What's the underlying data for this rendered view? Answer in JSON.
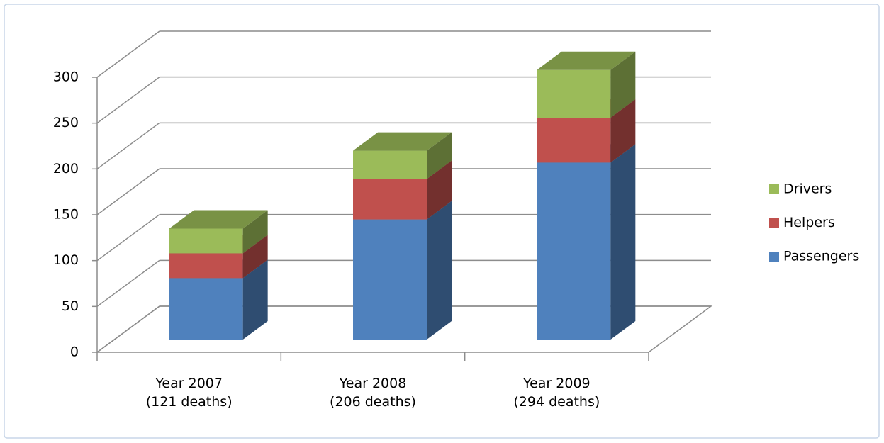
{
  "chart_data": {
    "type": "bar3d_stacked",
    "categories": [
      "Year 2007\n(121 deaths)",
      "Year 2008\n(206 deaths)",
      "Year 2009\n(294 deaths)"
    ],
    "series": [
      {
        "name": "Passengers",
        "color": "#4f81bd",
        "values": [
          67,
          131,
          193
        ]
      },
      {
        "name": "Helpers",
        "color": "#c0504d",
        "values": [
          27,
          44,
          49
        ]
      },
      {
        "name": "Drivers",
        "color": "#9bbb59",
        "values": [
          27,
          31,
          52
        ]
      }
    ],
    "ylim": [
      0,
      300
    ],
    "yticks": [
      0,
      50,
      100,
      150,
      200,
      250,
      300
    ],
    "grid": true,
    "legend": "right"
  }
}
